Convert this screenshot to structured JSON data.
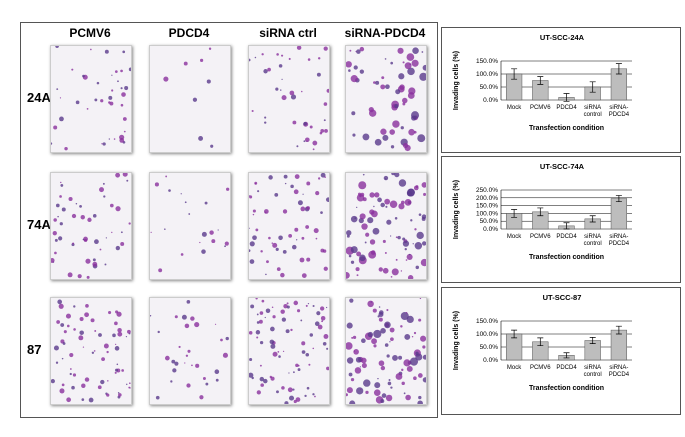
{
  "image_panel": {
    "columns": [
      "PCMV6",
      "PDCD4",
      "siRNA ctrl",
      "siRNA-PDCD4"
    ],
    "rows": [
      "24A",
      "74A",
      "87"
    ]
  },
  "chart_data": [
    {
      "type": "bar",
      "title": "UT-SCC-24A",
      "x_label": "Transfection condition",
      "y_label": "Invading cells (%)",
      "categories": [
        "Mock",
        "PCMV6",
        "PDCD4",
        "siRNA control",
        "siRNA-PDCD4"
      ],
      "values": [
        100,
        75,
        10,
        50,
        120
      ],
      "errors": [
        20,
        15,
        15,
        20,
        20
      ],
      "color": "#bdbdbd",
      "ylim": [
        0,
        150
      ],
      "yticks": [
        {
          "value": 0,
          "label": "0.0%"
        },
        {
          "value": 50,
          "label": "50.0%"
        },
        {
          "value": 100,
          "label": "100.0%"
        },
        {
          "value": 150,
          "label": "150.0%"
        }
      ],
      "grid": true
    },
    {
      "type": "bar",
      "title": "UT-SCC-74A",
      "x_label": "Transfection condition",
      "y_label": "Invading cells (%)",
      "categories": [
        "Mock",
        "PCMV6",
        "PDCD4",
        "siRNA control",
        "siRNA-PDCD4"
      ],
      "values": [
        100,
        110,
        20,
        65,
        195
      ],
      "errors": [
        25,
        25,
        20,
        20,
        20
      ],
      "color": "#bdbdbd",
      "ylim": [
        0,
        250
      ],
      "yticks": [
        {
          "value": 0,
          "label": "0.0%"
        },
        {
          "value": 50,
          "label": "50.0%"
        },
        {
          "value": 100,
          "label": "100.0%"
        },
        {
          "value": 150,
          "label": "150.0%"
        },
        {
          "value": 200,
          "label": "200.0%"
        },
        {
          "value": 250,
          "label": "250.0%"
        }
      ],
      "grid": true
    },
    {
      "type": "bar",
      "title": "UT-SCC-87",
      "x_label": "Transfection condition",
      "y_label": "Invading cells (%)",
      "categories": [
        "Mock",
        "PCMV6",
        "PDCD4",
        "siRNA control",
        "siRNA-PDCD4"
      ],
      "values": [
        100,
        70,
        18,
        75,
        115
      ],
      "errors": [
        15,
        15,
        10,
        12,
        15
      ],
      "color": "#bdbdbd",
      "ylim": [
        0,
        150
      ],
      "yticks": [
        {
          "value": 0,
          "label": "0.0%"
        },
        {
          "value": 50,
          "label": "50.0%"
        },
        {
          "value": 100,
          "label": "100.0%"
        },
        {
          "value": 150,
          "label": "150.0%"
        }
      ],
      "grid": true
    }
  ]
}
